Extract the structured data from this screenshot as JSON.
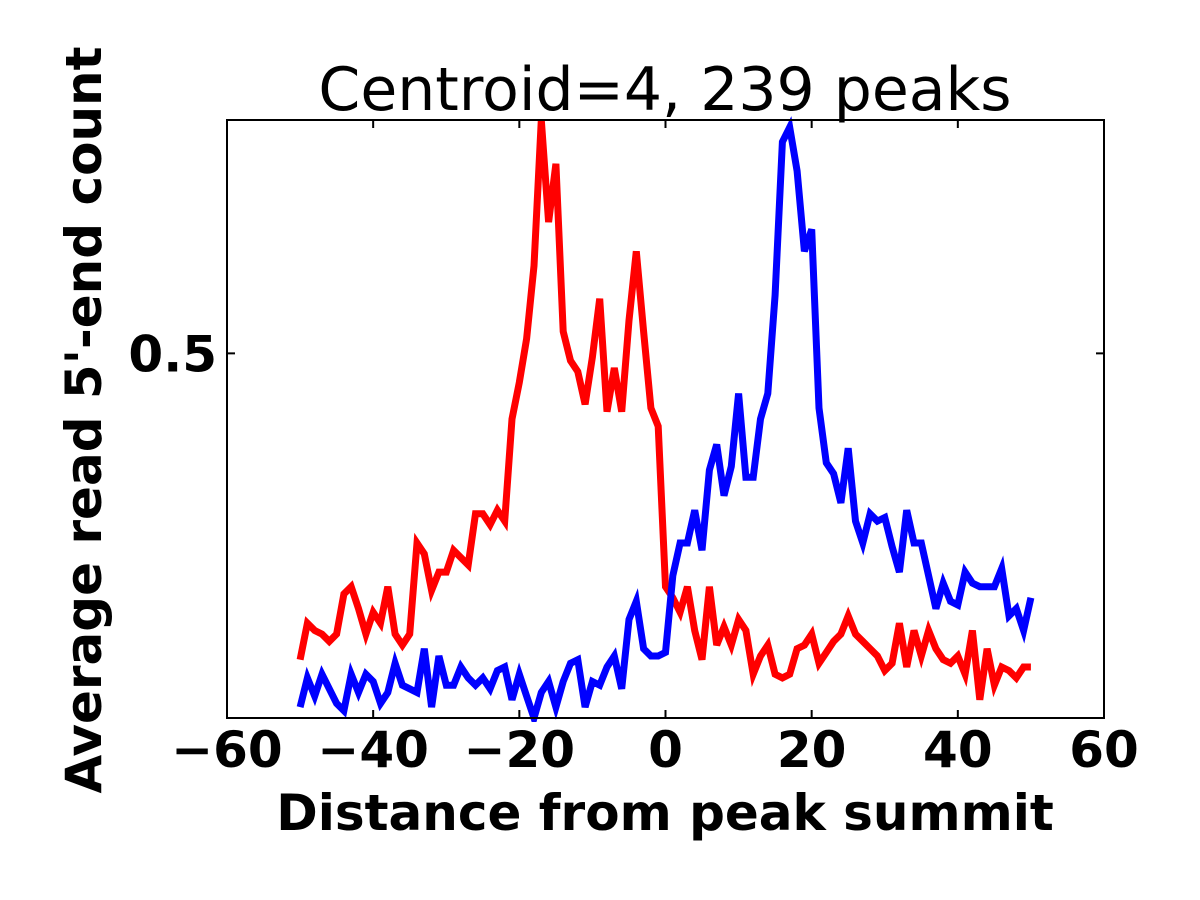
{
  "chart_data": {
    "type": "line",
    "title": "Centroid=4, 239 peaks",
    "xlabel": "Distance from peak summit",
    "ylabel": "Average read 5'-end count",
    "xlim": [
      -60,
      60
    ],
    "ylim": [
      0.0,
      0.82
    ],
    "xticks": [
      {
        "value": -60,
        "label": "−60"
      },
      {
        "value": -40,
        "label": "−40"
      },
      {
        "value": -20,
        "label": "−20"
      },
      {
        "value": 0,
        "label": "0"
      },
      {
        "value": 20,
        "label": "20"
      },
      {
        "value": 40,
        "label": "40"
      },
      {
        "value": 60,
        "label": "60"
      }
    ],
    "yticks": [
      {
        "value": 0.5,
        "label": "0.5"
      }
    ],
    "grid": false,
    "legend": "none",
    "x": [
      -50,
      -49,
      -48,
      -47,
      -46,
      -45,
      -44,
      -43,
      -42,
      -41,
      -40,
      -39,
      -38,
      -37,
      -36,
      -35,
      -34,
      -33,
      -32,
      -31,
      -30,
      -29,
      -28,
      -27,
      -26,
      -25,
      -24,
      -23,
      -22,
      -21,
      -20,
      -19,
      -18,
      -17,
      -16,
      -15,
      -14,
      -13,
      -12,
      -11,
      -10,
      -9,
      -8,
      -7,
      -6,
      -5,
      -4,
      -3,
      -2,
      -1,
      0,
      1,
      2,
      3,
      4,
      5,
      6,
      7,
      8,
      9,
      10,
      11,
      12,
      13,
      14,
      15,
      16,
      17,
      18,
      19,
      20,
      21,
      22,
      23,
      24,
      25,
      26,
      27,
      28,
      29,
      30,
      31,
      32,
      33,
      34,
      35,
      36,
      37,
      38,
      39,
      40,
      41,
      42,
      43,
      44,
      45,
      46,
      47,
      48,
      49,
      50
    ],
    "series": [
      {
        "color": "#ff0000",
        "values": [
          0.08,
          0.13,
          0.12,
          0.115,
          0.105,
          0.115,
          0.17,
          0.18,
          0.15,
          0.115,
          0.145,
          0.13,
          0.18,
          0.115,
          0.1,
          0.115,
          0.24,
          0.225,
          0.175,
          0.2,
          0.2,
          0.23,
          0.22,
          0.21,
          0.28,
          0.28,
          0.265,
          0.285,
          0.27,
          0.41,
          0.46,
          0.52,
          0.62,
          0.82,
          0.68,
          0.76,
          0.53,
          0.49,
          0.475,
          0.43,
          0.495,
          0.575,
          0.42,
          0.48,
          0.42,
          0.545,
          0.64,
          0.53,
          0.425,
          0.4,
          0.18,
          0.165,
          0.145,
          0.18,
          0.12,
          0.08,
          0.18,
          0.1,
          0.125,
          0.1,
          0.135,
          0.12,
          0.06,
          0.085,
          0.1,
          0.06,
          0.055,
          0.06,
          0.095,
          0.1,
          0.115,
          0.075,
          0.09,
          0.105,
          0.115,
          0.14,
          0.115,
          0.105,
          0.095,
          0.085,
          0.065,
          0.075,
          0.13,
          0.07,
          0.12,
          0.085,
          0.12,
          0.095,
          0.08,
          0.075,
          0.085,
          0.06,
          0.12,
          0.025,
          0.095,
          0.045,
          0.07,
          0.065,
          0.055,
          0.07,
          0.07
        ]
      },
      {
        "color": "#0000ff",
        "values": [
          0.015,
          0.055,
          0.03,
          0.06,
          0.04,
          0.02,
          0.01,
          0.06,
          0.035,
          0.06,
          0.05,
          0.02,
          0.035,
          0.075,
          0.045,
          0.04,
          0.035,
          0.095,
          0.015,
          0.085,
          0.045,
          0.045,
          0.07,
          0.055,
          0.045,
          0.055,
          0.04,
          0.065,
          0.07,
          0.025,
          0.06,
          0.03,
          0.0,
          0.035,
          0.05,
          0.015,
          0.05,
          0.075,
          0.08,
          0.015,
          0.05,
          0.045,
          0.07,
          0.085,
          0.04,
          0.135,
          0.16,
          0.095,
          0.085,
          0.085,
          0.09,
          0.195,
          0.24,
          0.24,
          0.285,
          0.23,
          0.34,
          0.375,
          0.305,
          0.345,
          0.445,
          0.33,
          0.33,
          0.41,
          0.445,
          0.58,
          0.79,
          0.81,
          0.75,
          0.64,
          0.67,
          0.425,
          0.35,
          0.335,
          0.295,
          0.37,
          0.27,
          0.24,
          0.28,
          0.27,
          0.275,
          0.235,
          0.2,
          0.285,
          0.24,
          0.24,
          0.195,
          0.15,
          0.185,
          0.16,
          0.155,
          0.2,
          0.185,
          0.18,
          0.18,
          0.18,
          0.205,
          0.14,
          0.15,
          0.12,
          0.165
        ]
      }
    ]
  }
}
